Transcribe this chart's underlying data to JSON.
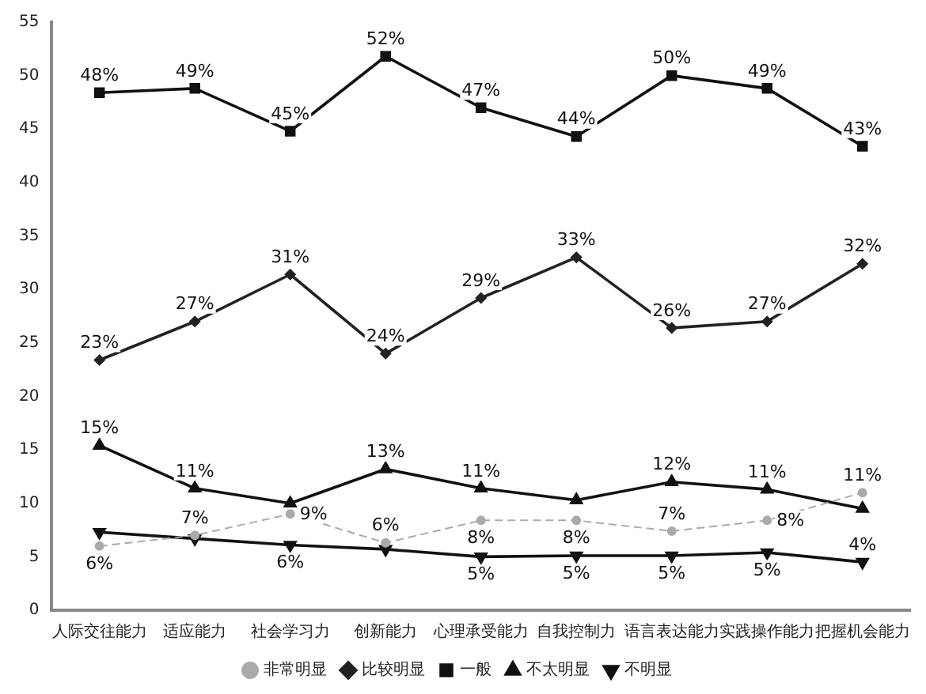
{
  "chart_data": {
    "type": "line",
    "categories": [
      "人际交往能力",
      "适应能力",
      "社会学习力",
      "创新能力",
      "心理承受能力",
      "自我控制力",
      "语言表达能力",
      "实践操作能力",
      "把握机会能力"
    ],
    "ylim": [
      0,
      55
    ],
    "yticks": [
      0,
      5,
      10,
      15,
      20,
      25,
      30,
      35,
      40,
      45,
      50,
      55
    ],
    "grid": false,
    "legend": "bottom",
    "series": [
      {
        "name": "非常明显",
        "color": "#aaaaaa",
        "marker": "circle",
        "line_style": "dashed",
        "values": [
          6,
          7,
          9,
          6.3,
          8.4,
          8.4,
          7.4,
          8.4,
          11
        ],
        "value_labels": [
          "6%",
          "7%",
          "9%",
          "6%",
          "8%",
          "8%",
          "7%",
          "8%",
          "11%"
        ]
      },
      {
        "name": "比较明显",
        "color": "#222222",
        "marker": "diamond",
        "line_style": "solid",
        "values": [
          23.4,
          27,
          31.4,
          24,
          29.2,
          33,
          26.4,
          27,
          32.4
        ],
        "value_labels": [
          "23%",
          "27%",
          "31%",
          "24%",
          "29%",
          "33%",
          "26%",
          "27%",
          "32%"
        ]
      },
      {
        "name": "一般",
        "color": "#111111",
        "marker": "square",
        "line_style": "solid",
        "values": [
          48.4,
          48.8,
          44.8,
          51.8,
          47,
          44.3,
          50,
          48.8,
          43.4
        ],
        "value_labels": [
          "48%",
          "49%",
          "45%",
          "52%",
          "47%",
          "44%",
          "50%",
          "49%",
          "43%"
        ]
      },
      {
        "name": "不太明显",
        "color": "#111111",
        "marker": "triangle",
        "line_style": "solid",
        "values": [
          15.4,
          11.4,
          10,
          13.2,
          11.4,
          10.3,
          12,
          11.3,
          9.5
        ],
        "value_labels": [
          "15%",
          "11%",
          null,
          "13%",
          "11%",
          null,
          "12%",
          "11%",
          null
        ]
      },
      {
        "name": "不明显",
        "color": "#111111",
        "marker": "triangle-down",
        "line_style": "solid",
        "values": [
          7.3,
          6.7,
          6.1,
          5.7,
          5,
          5.1,
          5.1,
          5.4,
          4.5
        ],
        "value_labels": [
          null,
          null,
          "6%",
          null,
          "5%",
          "5%",
          "5%",
          "5%",
          "4%"
        ]
      }
    ]
  }
}
